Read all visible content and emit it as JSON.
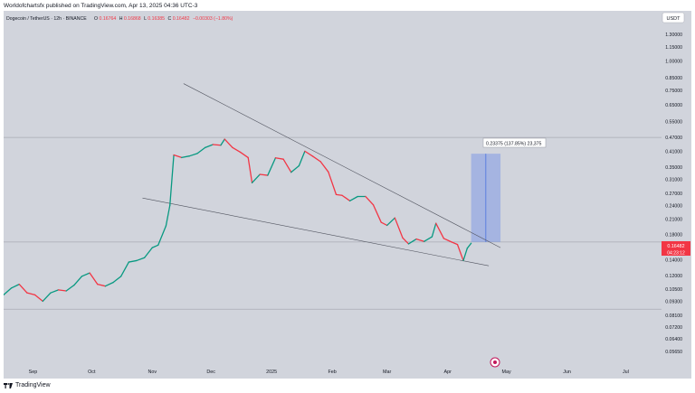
{
  "header": {
    "published_line": "Worldofchartsfx published on TradingView.com, Apr 13, 2025 04:36 UTC-3"
  },
  "footer": {
    "brand": "TradingView"
  },
  "chart_data": {
    "type": "line",
    "title": "Dogecoin / TetherUS · 12h · BINANCE",
    "ohlc": {
      "o_label": "O",
      "o": "0.16764",
      "h_label": "H",
      "h": "0.16868",
      "l_label": "L",
      "l": "0.16385",
      "c_label": "C",
      "c": "0.16482",
      "change": "−0.00303 (−1.80%)"
    },
    "currency_badge": "USDT",
    "yscale": "log",
    "ylim": [
      0.0495,
      1.45
    ],
    "y_ticks": [
      "1.30000",
      "1.15000",
      "1.00000",
      "0.85000",
      "0.75000",
      "0.65000",
      "0.55000",
      "0.47000",
      "0.41000",
      "0.35000",
      "0.31000",
      "0.27000",
      "0.24000",
      "0.21000",
      "0.18000",
      "0.14000",
      "0.12000",
      "0.10500",
      "0.09300",
      "0.08100",
      "0.07200",
      "0.06400",
      "0.05650"
    ],
    "x_ticks": [
      "Sep",
      "Oct",
      "Nov",
      "Dec",
      "2025",
      "Feb",
      "Mar",
      "Apr",
      "May",
      "Jun",
      "Jul"
    ],
    "x_tick_dates": [
      "2024-09-01",
      "2024-10-01",
      "2024-11-01",
      "2024-12-01",
      "2025-01-01",
      "2025-02-01",
      "2025-03-01",
      "2025-04-01",
      "2025-05-01",
      "2025-06-01",
      "2025-07-01"
    ],
    "xlim": [
      "2024-08-17",
      "2025-07-17"
    ],
    "price_label": "0.16482",
    "countdown_label": "04:23:12",
    "horizontal_levels": [
      0.47,
      0.167,
      0.086
    ],
    "trendlines": [
      {
        "name": "upper",
        "from": [
          "2024-11-17",
          0.8
        ],
        "to": [
          "2025-04-28",
          0.158
        ]
      },
      {
        "name": "lower",
        "from": [
          "2024-10-27",
          0.258
        ],
        "to": [
          "2025-04-22",
          0.132
        ]
      }
    ],
    "projection": {
      "label": "0.23375 (137.85%) 23,375",
      "from_date": "2025-04-13",
      "to_date": "2025-04-28",
      "low": 0.167,
      "high": 0.4
    },
    "series": [
      {
        "values": [
          [
            "2024-08-17",
            0.099
          ],
          [
            "2024-08-21",
            0.106
          ],
          [
            "2024-08-25",
            0.11
          ],
          [
            "2024-08-29",
            0.101
          ],
          [
            "2024-09-02",
            0.099
          ],
          [
            "2024-09-06",
            0.093
          ],
          [
            "2024-09-10",
            0.101
          ],
          [
            "2024-09-14",
            0.104
          ],
          [
            "2024-09-18",
            0.103
          ],
          [
            "2024-09-22",
            0.109
          ],
          [
            "2024-09-26",
            0.119
          ],
          [
            "2024-09-30",
            0.123
          ],
          [
            "2024-10-04",
            0.11
          ],
          [
            "2024-10-08",
            0.108
          ],
          [
            "2024-10-12",
            0.112
          ],
          [
            "2024-10-16",
            0.119
          ],
          [
            "2024-10-20",
            0.137
          ],
          [
            "2024-10-24",
            0.139
          ],
          [
            "2024-10-28",
            0.143
          ],
          [
            "2024-11-01",
            0.158
          ],
          [
            "2024-11-04",
            0.162
          ],
          [
            "2024-11-08",
            0.196
          ],
          [
            "2024-11-10",
            0.24
          ],
          [
            "2024-11-12",
            0.395
          ],
          [
            "2024-11-16",
            0.385
          ],
          [
            "2024-11-20",
            0.391
          ],
          [
            "2024-11-24",
            0.401
          ],
          [
            "2024-11-28",
            0.425
          ],
          [
            "2024-12-02",
            0.438
          ],
          [
            "2024-12-06",
            0.435
          ],
          [
            "2024-12-08",
            0.462
          ],
          [
            "2024-12-12",
            0.425
          ],
          [
            "2024-12-16",
            0.406
          ],
          [
            "2024-12-20",
            0.385
          ],
          [
            "2024-12-22",
            0.3
          ],
          [
            "2024-12-26",
            0.326
          ],
          [
            "2024-12-30",
            0.323
          ],
          [
            "2025-01-03",
            0.384
          ],
          [
            "2025-01-07",
            0.379
          ],
          [
            "2025-01-11",
            0.333
          ],
          [
            "2025-01-15",
            0.355
          ],
          [
            "2025-01-18",
            0.41
          ],
          [
            "2025-01-22",
            0.39
          ],
          [
            "2025-01-26",
            0.37
          ],
          [
            "2025-01-30",
            0.334
          ],
          [
            "2025-02-03",
            0.267
          ],
          [
            "2025-02-06",
            0.265
          ],
          [
            "2025-02-10",
            0.251
          ],
          [
            "2025-02-14",
            0.262
          ],
          [
            "2025-02-18",
            0.262
          ],
          [
            "2025-02-22",
            0.241
          ],
          [
            "2025-02-26",
            0.203
          ],
          [
            "2025-03-01",
            0.197
          ],
          [
            "2025-03-05",
            0.212
          ],
          [
            "2025-03-09",
            0.174
          ],
          [
            "2025-03-12",
            0.164
          ],
          [
            "2025-03-16",
            0.172
          ],
          [
            "2025-03-20",
            0.168
          ],
          [
            "2025-03-24",
            0.176
          ],
          [
            "2025-03-26",
            0.201
          ],
          [
            "2025-03-30",
            0.173
          ],
          [
            "2025-04-03",
            0.167
          ],
          [
            "2025-04-06",
            0.163
          ],
          [
            "2025-04-09",
            0.139
          ],
          [
            "2025-04-11",
            0.157
          ],
          [
            "2025-04-13",
            0.165
          ]
        ]
      }
    ]
  }
}
